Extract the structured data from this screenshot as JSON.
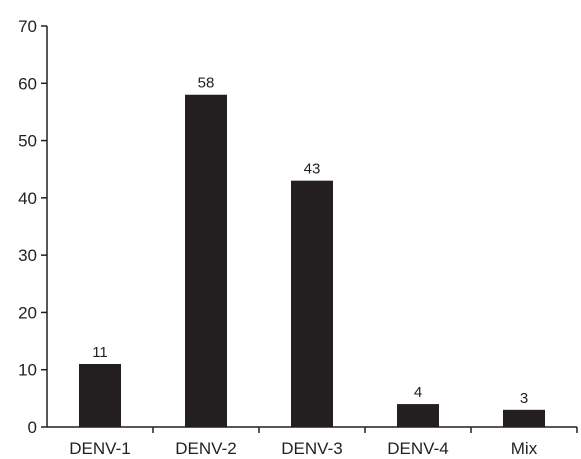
{
  "chart_data": {
    "type": "bar",
    "categories": [
      "DENV-1",
      "DENV-2",
      "DENV-3",
      "DENV-4",
      "Mix"
    ],
    "values": [
      11,
      58,
      43,
      4,
      3
    ],
    "data_labels": [
      "11",
      "58",
      "43",
      "4",
      "3"
    ],
    "title": "",
    "xlabel": "",
    "ylabel": "",
    "ylim": [
      0,
      70
    ],
    "yticks": [
      0,
      10,
      20,
      30,
      40,
      50,
      60,
      70
    ],
    "grid": false,
    "legend": "none",
    "bar_color": "#231f20",
    "axis_color": "#231f20"
  }
}
